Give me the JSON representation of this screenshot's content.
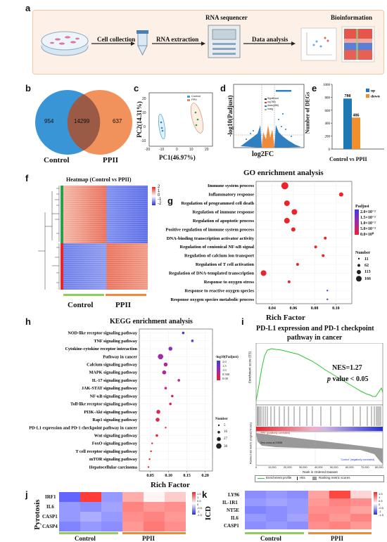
{
  "panels": [
    "a",
    "b",
    "c",
    "d",
    "e",
    "f",
    "g",
    "h",
    "i",
    "j",
    "k"
  ],
  "a": {
    "steps": [
      "Cell collection",
      "RNA extraction",
      "RNA sequencer",
      "Data analysis",
      "Bioinformation"
    ]
  },
  "b": {
    "left_count": "954",
    "overlap_count": "14299",
    "right_count": "637",
    "left_label": "Control",
    "right_label": "PPII",
    "colors": {
      "left": "#3a95d6",
      "right": "#ef7f40"
    }
  },
  "c": {
    "xlabel": "PC1(46.97%)",
    "ylabel": "PC2(14.31%)",
    "legend": [
      "Control",
      "PPII"
    ],
    "xticks": [
      "-20",
      "-10",
      "0",
      "10",
      "20"
    ],
    "yticks": [
      "-10",
      "0",
      "10",
      "20"
    ]
  },
  "d": {
    "xlabel": "log2FC",
    "ylabel": "-log10(Padjust)",
    "legend": [
      "Significant",
      "up(780)",
      "down(486)",
      "nosig"
    ]
  },
  "e": {
    "chart_data": {
      "type": "bar",
      "categories": [
        "Control vs PPII"
      ],
      "series": [
        {
          "name": "up",
          "values": [
            780
          ]
        },
        {
          "name": "down",
          "values": [
            486
          ]
        }
      ],
      "ylabel": "Number of DEGs",
      "xlabel": "Control vs PPII",
      "ylim": [
        0,
        1000
      ],
      "yticks": [
        "0",
        "200",
        "400",
        "600",
        "800",
        "1000"
      ],
      "colors": [
        "#1f78b4",
        "#f28e2b"
      ]
    }
  },
  "f": {
    "title": "Heatmap (Control vs PPII)",
    "scale": [
      "2",
      "1",
      "0",
      "-1",
      "-2"
    ],
    "groups": [
      "Control",
      "PPII"
    ]
  },
  "g": {
    "title": "GO enrichment analysis",
    "xlabel": "Rich Factor",
    "xticks": [
      "0.04",
      "0.06",
      "0.08",
      "0.10"
    ],
    "xlim": [
      0.025,
      0.115
    ],
    "terms": [
      {
        "name": "Immune system process",
        "x": 0.052,
        "size": 5,
        "color": "#e8252a"
      },
      {
        "name": "Inflammatory response",
        "x": 0.105,
        "size": 3,
        "color": "#e8252a"
      },
      {
        "name": "Regulation of programmed cell death",
        "x": 0.054,
        "size": 4,
        "color": "#e8252a"
      },
      {
        "name": "Regulation of immune response",
        "x": 0.061,
        "size": 4,
        "color": "#e8252a"
      },
      {
        "name": "Regulation of apoptotic process",
        "x": 0.054,
        "size": 4,
        "color": "#e8252a"
      },
      {
        "name": "Positive regulation of immune system process",
        "x": 0.06,
        "size": 3,
        "color": "#e8252a"
      },
      {
        "name": "DNA-binding transcription activator activity",
        "x": 0.09,
        "size": 2,
        "color": "#e8252a"
      },
      {
        "name": "Regulation of conionical NF-κB signal",
        "x": 0.081,
        "size": 2,
        "color": "#e8252a"
      },
      {
        "name": "Regulation of calcium ion transport",
        "x": 0.088,
        "size": 2,
        "color": "#e8252a"
      },
      {
        "name": "Regulation of T cell activation",
        "x": 0.064,
        "size": 2,
        "color": "#e8252a"
      },
      {
        "name": "Regulation of DNA-templated transcription",
        "x": 0.032,
        "size": 4,
        "color": "#e8252a"
      },
      {
        "name": "Response to oxygen stress",
        "x": 0.056,
        "size": 2,
        "color": "#e8252a"
      },
      {
        "name": "Response to reactive oxygen species",
        "x": 0.092,
        "size": 1,
        "color": "#5a3fd0"
      },
      {
        "name": "Response oxygen species metabolic process",
        "x": 0.092,
        "size": 1,
        "color": "#3b3fd8"
      }
    ],
    "legend_padj_title": "Padjust",
    "legend_padj": [
      "2.0×10⁻²",
      "1.5×10⁻²",
      "1.0×10⁻²",
      "5.0×10⁻³",
      "0.0×10⁰"
    ],
    "legend_num_title": "Number",
    "legend_num": [
      "11",
      "62",
      "113",
      "166"
    ]
  },
  "h": {
    "title": "KEGG enrichment analysis",
    "xlabel": "Rich Factor",
    "xticks": [
      "0.05",
      "0.10",
      "0.15",
      "0.20"
    ],
    "xlim": [
      0.02,
      0.22
    ],
    "terms": [
      {
        "name": "NOD-like receptor signaling pathway",
        "x": 0.14,
        "size": 2,
        "color": "#3b3fd8"
      },
      {
        "name": "TNF signaling pathway",
        "x": 0.165,
        "size": 2,
        "color": "#5a3fd0"
      },
      {
        "name": "Cytokine-cytokine receptor interaction",
        "x": 0.105,
        "size": 3,
        "color": "#8a2fb8"
      },
      {
        "name": "Pathway in cancer",
        "x": 0.078,
        "size": 4,
        "color": "#a02aa8"
      },
      {
        "name": "Calcium signaling pathway",
        "x": 0.092,
        "size": 3,
        "color": "#a8289e"
      },
      {
        "name": "MAPK signaling pathway",
        "x": 0.088,
        "size": 3,
        "color": "#b42690"
      },
      {
        "name": "IL-17 signaling pathway",
        "x": 0.128,
        "size": 2,
        "color": "#c02584"
      },
      {
        "name": "JAK-STAT signaling pathway",
        "x": 0.092,
        "size": 2,
        "color": "#c82478"
      },
      {
        "name": "NF-κB signaling pathway",
        "x": 0.11,
        "size": 2,
        "color": "#d0246c"
      },
      {
        "name": "Toll-like receptor signaling pathway",
        "x": 0.105,
        "size": 2,
        "color": "#d82460"
      },
      {
        "name": "PI3K-Akt signaling pathway",
        "x": 0.072,
        "size": 3,
        "color": "#e02454"
      },
      {
        "name": "Rap1 signaling pathway",
        "x": 0.07,
        "size": 3,
        "color": "#e42448"
      },
      {
        "name": "PD-L1 expression and PD-1 checkpoint pathway in cancer",
        "x": 0.092,
        "size": 1,
        "color": "#e8243c"
      },
      {
        "name": "Wnt signaling pathway",
        "x": 0.068,
        "size": 2,
        "color": "#e82534"
      },
      {
        "name": "FoxO signaling pathway",
        "x": 0.055,
        "size": 1,
        "color": "#e8252e"
      },
      {
        "name": "T cell receptor signaling pathway",
        "x": 0.052,
        "size": 1,
        "color": "#e8252a"
      },
      {
        "name": "mTOR signaling pathway",
        "x": 0.048,
        "size": 1,
        "color": "#e8252a"
      },
      {
        "name": "Hepatocellular carcinoma",
        "x": 0.045,
        "size": 1,
        "color": "#e8252a"
      }
    ],
    "legend_padj_title": "-log10(Padjust)",
    "legend_padj": [
      "2.0",
      "1.5",
      "1.0",
      "0.500",
      "0.00"
    ],
    "legend_num_title": "Number",
    "legend_num": [
      "5",
      "16",
      "27",
      "38"
    ]
  },
  "i": {
    "title_line1": "PD-L1 expression and PD-1 checkpoint",
    "title_line2": "pathway in cancer",
    "nes": "NES=1.27",
    "pvalue_p": "p",
    "pvalue_rest": " value < 0.05",
    "ylabel_top": "Enrichment score (ES)",
    "ylabel_bottom": "Ranked list metric (Signal2Noise)",
    "xlabel": "Rank in Ordered Dataset",
    "xticks": [
      "0",
      "10,000",
      "20,000",
      "30,000",
      "40,000",
      "50,000",
      "60,000",
      "70,000",
      "80,000"
    ],
    "legend_profile": "Enrichment profile",
    "legend_hits": "Hits",
    "legend_metric": "Ranking metric scores",
    "pos_label": "'PPII' (positively correlated)",
    "neg_label": "'Control' (negatively correlated)",
    "zero_label": "Zero cross at 37898"
  },
  "j": {
    "ylabel": "Pyrotosis",
    "genes": [
      "IRF1",
      "IL6",
      "CASP1",
      "CASP4"
    ],
    "groups": [
      "Control",
      "PPII"
    ],
    "scale": [
      "1.5",
      "1",
      "0.5",
      "0",
      "-0.5",
      "-1",
      "-1.5"
    ],
    "values": [
      [
        -1.5,
        1.9,
        -1.0,
        0.8,
        0.1,
        0.5
      ],
      [
        -1.0,
        -1.1,
        -0.9,
        1.2,
        1.0,
        1.1
      ],
      [
        -1.0,
        -0.8,
        -1.0,
        1.1,
        1.2,
        1.0
      ],
      [
        -1.2,
        -1.0,
        -1.1,
        1.0,
        1.3,
        1.1
      ]
    ]
  },
  "k": {
    "ylabel": "ICD",
    "genes": [
      "LY96",
      "IL-1R1",
      "NT5E",
      "IL6",
      "CASP1"
    ],
    "groups": [
      "Control",
      "PPII"
    ],
    "scale": [
      "1.5",
      "1",
      "0.5",
      "0",
      "-0.5",
      "-1",
      "-1.5"
    ],
    "values": [
      [
        -1.1,
        -1.0,
        -1.1,
        0.9,
        1.8,
        0.4
      ],
      [
        -1.0,
        -0.9,
        -1.0,
        1.0,
        1.2,
        1.1
      ],
      [
        -1.2,
        -1.1,
        -1.0,
        1.1,
        1.1,
        0.9
      ],
      [
        -1.0,
        -1.1,
        -0.9,
        1.2,
        1.0,
        1.2
      ],
      [
        -1.1,
        -1.0,
        -1.1,
        1.1,
        1.2,
        1.0
      ]
    ]
  }
}
